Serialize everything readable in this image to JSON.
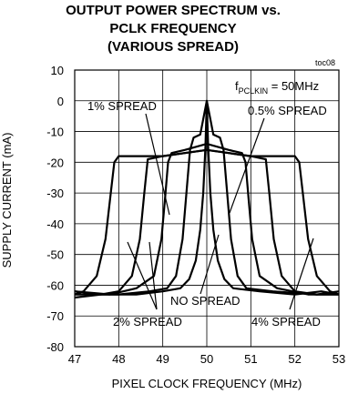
{
  "chart_data": {
    "type": "line",
    "title": [
      "OUTPUT POWER SPECTRUM vs.",
      "PCLK FREQUENCY",
      "(VARIOUS SPREAD)"
    ],
    "tag": "toc08",
    "xlabel": "PIXEL CLOCK FREQUENCY (MHz)",
    "ylabel": "SUPPLY CURRENT (mA)",
    "xlim": [
      47,
      53
    ],
    "ylim": [
      -80,
      10
    ],
    "xticks": [
      47,
      48,
      49,
      50,
      51,
      52,
      53
    ],
    "yticks": [
      10,
      0,
      -10,
      -20,
      -30,
      -40,
      -50,
      -60,
      -70,
      -80
    ],
    "grid": true,
    "condition": {
      "prefix": "f",
      "subscript": "PCLKIN",
      "suffix": " = 50MHz"
    },
    "annotations": [
      "1% SPREAD",
      "0.5% SPREAD",
      "NO SPREAD",
      "2% SPREAD",
      "4% SPREAD"
    ],
    "series": [
      {
        "values": [
          [
            47,
            -62
          ],
          [
            47.6,
            -63
          ],
          [
            48.4,
            -63
          ],
          [
            49.0,
            -62
          ],
          [
            49.4,
            -61
          ],
          [
            49.6,
            -58
          ],
          [
            49.75,
            -52
          ],
          [
            49.85,
            -42
          ],
          [
            49.92,
            -30
          ],
          [
            49.97,
            -15
          ],
          [
            50.0,
            0
          ],
          [
            50.03,
            -15
          ],
          [
            50.08,
            -30
          ],
          [
            50.15,
            -42
          ],
          [
            50.25,
            -52
          ],
          [
            50.4,
            -58
          ],
          [
            50.6,
            -61
          ],
          [
            51.2,
            -62
          ],
          [
            52.0,
            -63
          ],
          [
            52.6,
            -62
          ],
          [
            53,
            -63
          ]
        ]
      },
      {
        "values": [
          [
            47,
            -63
          ],
          [
            48.0,
            -63
          ],
          [
            48.7,
            -62
          ],
          [
            49.1,
            -61
          ],
          [
            49.3,
            -57
          ],
          [
            49.45,
            -45
          ],
          [
            49.55,
            -28
          ],
          [
            49.62,
            -16
          ],
          [
            49.7,
            -12
          ],
          [
            49.85,
            -11
          ],
          [
            50.0,
            0
          ],
          [
            50.15,
            -11
          ],
          [
            50.3,
            -12
          ],
          [
            50.38,
            -16
          ],
          [
            50.45,
            -28
          ],
          [
            50.55,
            -45
          ],
          [
            50.7,
            -57
          ],
          [
            50.9,
            -61
          ],
          [
            51.5,
            -62
          ],
          [
            52.5,
            -63
          ],
          [
            53,
            -62
          ]
        ]
      },
      {
        "values": [
          [
            47,
            -62
          ],
          [
            47.8,
            -63
          ],
          [
            48.4,
            -61
          ],
          [
            48.8,
            -57
          ],
          [
            48.97,
            -45
          ],
          [
            49.05,
            -32
          ],
          [
            49.12,
            -20
          ],
          [
            49.2,
            -17
          ],
          [
            49.5,
            -16
          ],
          [
            49.75,
            -15
          ],
          [
            50.0,
            -14
          ],
          [
            50.25,
            -15
          ],
          [
            50.5,
            -16
          ],
          [
            50.8,
            -17
          ],
          [
            50.88,
            -20
          ],
          [
            50.95,
            -32
          ],
          [
            51.03,
            -45
          ],
          [
            51.2,
            -57
          ],
          [
            51.6,
            -61
          ],
          [
            52.3,
            -63
          ],
          [
            53,
            -63
          ]
        ]
      },
      {
        "values": [
          [
            47,
            -64
          ],
          [
            47.6,
            -63
          ],
          [
            48.0,
            -62
          ],
          [
            48.3,
            -57
          ],
          [
            48.48,
            -45
          ],
          [
            48.58,
            -30
          ],
          [
            48.66,
            -19
          ],
          [
            49.0,
            -18
          ],
          [
            49.5,
            -17
          ],
          [
            50.0,
            -16
          ],
          [
            50.5,
            -17
          ],
          [
            51.0,
            -18
          ],
          [
            51.34,
            -19
          ],
          [
            51.42,
            -30
          ],
          [
            51.52,
            -45
          ],
          [
            51.7,
            -57
          ],
          [
            52.0,
            -62
          ],
          [
            52.5,
            -63
          ],
          [
            53,
            -63
          ]
        ]
      },
      {
        "values": [
          [
            47,
            -63
          ],
          [
            47.2,
            -62
          ],
          [
            47.5,
            -57
          ],
          [
            47.7,
            -45
          ],
          [
            47.82,
            -30
          ],
          [
            47.9,
            -20
          ],
          [
            48.0,
            -18
          ],
          [
            48.5,
            -18
          ],
          [
            49.0,
            -18
          ],
          [
            49.5,
            -17
          ],
          [
            50.0,
            -16
          ],
          [
            50.5,
            -17
          ],
          [
            51.0,
            -18
          ],
          [
            51.5,
            -18
          ],
          [
            52.0,
            -18
          ],
          [
            52.1,
            -20
          ],
          [
            52.18,
            -30
          ],
          [
            52.3,
            -45
          ],
          [
            52.5,
            -57
          ],
          [
            52.8,
            -62
          ],
          [
            53,
            -63
          ]
        ]
      }
    ]
  }
}
